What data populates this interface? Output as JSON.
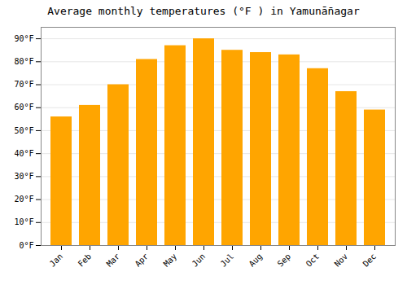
{
  "chart_data": {
    "type": "bar",
    "title": "Average monthly temperatures (°F ) in Yamunā̄nagar",
    "categories": [
      "Jan",
      "Feb",
      "Mar",
      "Apr",
      "May",
      "Jun",
      "Jul",
      "Aug",
      "Sep",
      "Oct",
      "Nov",
      "Dec"
    ],
    "values": [
      56,
      61,
      70,
      81,
      87,
      90,
      85,
      84,
      83,
      77,
      67,
      59
    ],
    "color": "#FFA500",
    "ylim": [
      0,
      95
    ],
    "yticks": [
      {
        "value": 0,
        "label": "0°F"
      },
      {
        "value": 10,
        "label": "10°F"
      },
      {
        "value": 20,
        "label": "20°F"
      },
      {
        "value": 30,
        "label": "30°F"
      },
      {
        "value": 40,
        "label": "40°F"
      },
      {
        "value": 50,
        "label": "50°F"
      },
      {
        "value": 60,
        "label": "60°F"
      },
      {
        "value": 70,
        "label": "70°F"
      },
      {
        "value": 80,
        "label": "80°F"
      },
      {
        "value": 90,
        "label": "90°F"
      }
    ],
    "grid": true
  }
}
